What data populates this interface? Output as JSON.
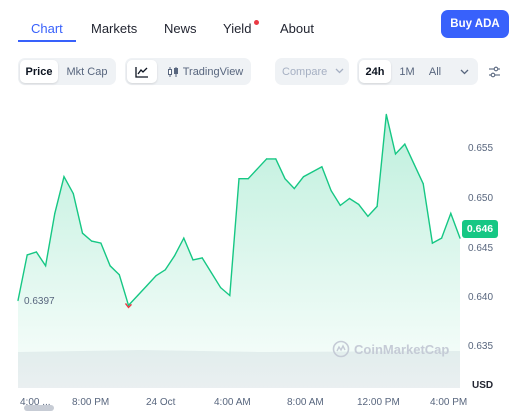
{
  "nav": {
    "tabs": [
      {
        "label": "Chart",
        "active": true
      },
      {
        "label": "Markets",
        "active": false
      },
      {
        "label": "News",
        "active": false
      },
      {
        "label": "Yield",
        "active": false,
        "notification_dot": true
      },
      {
        "label": "About",
        "active": false
      }
    ],
    "buy_button": "Buy ADA"
  },
  "toolbar": {
    "type_toggle": [
      {
        "label": "Price",
        "active": true
      },
      {
        "label": "Mkt Cap",
        "active": false
      }
    ],
    "chart_icon": "line-chart-icon",
    "tradingview_label": "TradingView",
    "compare_label": "Compare",
    "ranges": [
      {
        "label": "24h",
        "active": true
      },
      {
        "label": "1M",
        "active": false
      },
      {
        "label": "All",
        "active": false
      }
    ],
    "settings_icon": "sliders-icon"
  },
  "chart": {
    "current_price": "0.646",
    "open_price": "0.6397",
    "currency": "USD",
    "watermark": "CoinMarketCap",
    "colors": {
      "line": "#16c784",
      "fill": "#16c784",
      "low_marker": "#ea3943",
      "badge": "#16c784"
    }
  },
  "chart_data": {
    "type": "area",
    "title": "",
    "xlabel": "",
    "ylabel": "",
    "y_ticks": [
      "0.655",
      "0.650",
      "0.645",
      "0.640",
      "0.635"
    ],
    "x_ticks": [
      "4:00 ...",
      "8:00 PM",
      "24 Oct",
      "4:00 AM",
      "8:00 AM",
      "12:00 PM",
      "4:00 PM"
    ],
    "ylim": [
      0.6345,
      0.6615
    ],
    "x": [
      0,
      0.5,
      1,
      1.5,
      2,
      2.5,
      3,
      3.5,
      4,
      4.5,
      5,
      5.5,
      6,
      6.5,
      7,
      7.5,
      8,
      8.5,
      9,
      9.5,
      10,
      10.5,
      11,
      11.5,
      12,
      12.5,
      13,
      13.5,
      14,
      14.5,
      15,
      15.5,
      16,
      16.5,
      17,
      17.5,
      18,
      18.5,
      19,
      19.5,
      20,
      20.5,
      21,
      21.5,
      22,
      22.5,
      23,
      23.5,
      24
    ],
    "values": [
      0.6397,
      0.6443,
      0.6446,
      0.6432,
      0.6485,
      0.6522,
      0.6505,
      0.6465,
      0.6457,
      0.6455,
      0.6432,
      0.6423,
      0.6392,
      0.6402,
      0.6412,
      0.6422,
      0.6428,
      0.6442,
      0.646,
      0.6438,
      0.644,
      0.6425,
      0.641,
      0.6402,
      0.652,
      0.652,
      0.653,
      0.654,
      0.654,
      0.652,
      0.651,
      0.6522,
      0.6527,
      0.6532,
      0.6508,
      0.6493,
      0.65,
      0.6494,
      0.6482,
      0.6492,
      0.6585,
      0.6545,
      0.6555,
      0.6535,
      0.6515,
      0.6455,
      0.646,
      0.6485,
      0.646
    ],
    "volume_band": true,
    "grid": false,
    "legend": "none"
  }
}
